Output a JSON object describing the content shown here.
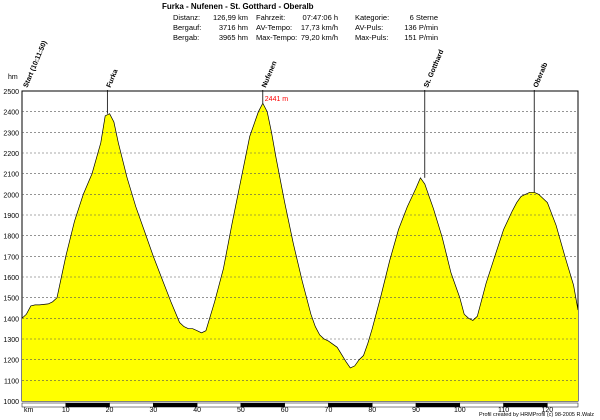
{
  "header": {
    "title": "Furka - Nufenen - St. Gotthard - Oberalb",
    "stats": [
      {
        "label": "Distanz:",
        "value": "126,99 km"
      },
      {
        "label": "Bergauf:",
        "value": "3716 hm"
      },
      {
        "label": "Bergab:",
        "value": "3965 hm"
      },
      {
        "label": "Fahrzeit:",
        "value": "07:47:06 h"
      },
      {
        "label": "AV-Tempo:",
        "value": "17,73 km/h"
      },
      {
        "label": "Max-Tempo:",
        "value": "79,20 km/h"
      },
      {
        "label": "Kategorie:",
        "value": "6 Sterne"
      },
      {
        "label": "AV-Puls:",
        "value": "136 P/min"
      },
      {
        "label": "Max-Puls:",
        "value": "151 P/min"
      }
    ]
  },
  "footer": {
    "credit": "Profil created by HRMProfil (c) 98-2005 R.Walz"
  },
  "chart_data": {
    "type": "area",
    "xlabel": "km",
    "ylabel": "hm",
    "xlim": [
      0,
      127
    ],
    "ylim": [
      1000,
      2500
    ],
    "x_ticks": [
      10,
      20,
      30,
      40,
      50,
      60,
      70,
      80,
      90,
      100,
      110,
      120
    ],
    "y_ticks": [
      1000,
      1100,
      1200,
      1300,
      1400,
      1500,
      1600,
      1700,
      1800,
      1900,
      2000,
      2100,
      2200,
      2300,
      2400,
      2500
    ],
    "grid": true,
    "fill_color": "#ffff00",
    "line_color": "#000000",
    "annotation_color": "#ff0000",
    "series": [
      {
        "x": [
          0,
          1,
          2,
          3,
          4,
          6,
          7,
          8,
          9,
          10,
          12,
          14,
          16,
          18,
          19,
          20,
          21,
          22,
          24,
          26,
          28,
          30,
          32,
          34,
          36,
          37,
          38,
          39,
          40,
          41,
          42,
          44,
          46,
          48,
          50,
          52,
          54,
          55,
          56,
          57,
          58,
          60,
          62,
          64,
          66,
          67,
          68,
          69,
          70,
          72,
          74,
          75,
          76,
          77,
          78,
          79,
          80,
          82,
          84,
          86,
          88,
          90,
          91,
          92,
          93,
          94,
          96,
          98,
          100,
          101,
          102,
          103,
          104,
          106,
          108,
          110,
          112,
          113,
          114,
          115,
          116,
          117,
          118,
          120,
          122,
          124,
          126,
          127
        ],
        "y": [
          1400,
          1420,
          1460,
          1465,
          1465,
          1470,
          1480,
          1500,
          1600,
          1700,
          1870,
          2000,
          2100,
          2250,
          2380,
          2390,
          2350,
          2250,
          2080,
          1940,
          1820,
          1700,
          1590,
          1480,
          1380,
          1360,
          1350,
          1350,
          1340,
          1330,
          1340,
          1480,
          1640,
          1860,
          2070,
          2280,
          2400,
          2441,
          2400,
          2300,
          2180,
          1960,
          1760,
          1580,
          1420,
          1360,
          1320,
          1300,
          1290,
          1260,
          1190,
          1160,
          1170,
          1200,
          1220,
          1280,
          1350,
          1510,
          1680,
          1830,
          1940,
          2030,
          2080,
          2050,
          1990,
          1930,
          1790,
          1620,
          1500,
          1420,
          1400,
          1390,
          1410,
          1570,
          1700,
          1830,
          1920,
          1960,
          1990,
          2000,
          2010,
          2010,
          2000,
          1960,
          1850,
          1700,
          1560,
          1440
        ]
      }
    ],
    "peaks": [
      {
        "label": "Start (10:11:50)",
        "x": 0.5,
        "y": 1400
      },
      {
        "label": "Furka",
        "x": 19.5,
        "y": 2390
      },
      {
        "label": "Nufenen",
        "x": 55,
        "y": 2441
      },
      {
        "label": "St. Gotthard",
        "x": 92,
        "y": 2080
      },
      {
        "label": "Oberalb",
        "x": 117,
        "y": 2010
      }
    ],
    "max_annotation": {
      "text": "2441 m",
      "x": 55,
      "y": 2441
    }
  }
}
